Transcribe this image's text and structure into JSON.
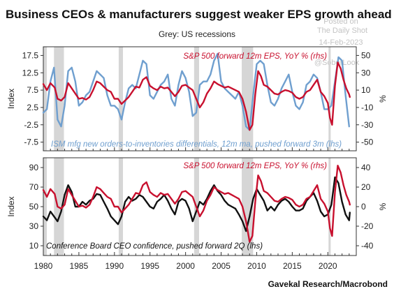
{
  "title": "Business CEOs & manufacturers suggest weaker EPS growth ahead",
  "subtitle": "Grey: US recessions",
  "watermark": {
    "line1": "Posted on",
    "line2": "The Daily Shot",
    "line3": "14-Feb-2023",
    "line4": "@SoberLook"
  },
  "source": "Gavekal Research/Macrobond",
  "colors": {
    "red": "#c8102e",
    "blue": "#6f9fcf",
    "black": "#111111",
    "recession": "#d6d6d6",
    "axis": "#333333"
  },
  "chart_data": [
    {
      "type": "line",
      "panel": "top",
      "xlim": [
        1980,
        2024
      ],
      "x_ticks": [
        "1980",
        "1985",
        "1990",
        "1995",
        "2000",
        "2005",
        "2010",
        "2015",
        "2020"
      ],
      "y_left_label": "Index",
      "y_left_lim": [
        -10,
        20
      ],
      "y_left_ticks": [
        "17.5",
        "12.5",
        "7.5",
        "2.5",
        "-2.5",
        "-7.5"
      ],
      "y_right_label": "%",
      "y_right_lim": [
        -60,
        60
      ],
      "y_right_ticks": [
        "50",
        "30",
        "10",
        "-10",
        "-30",
        "-50"
      ],
      "recessions": [
        [
          1980.0,
          1980.5
        ],
        [
          1981.5,
          1982.9
        ],
        [
          1990.6,
          1991.2
        ],
        [
          2001.2,
          2001.9
        ],
        [
          2007.9,
          2009.5
        ],
        [
          2020.1,
          2020.4
        ]
      ],
      "annotations": {
        "red": "S&P 500 forward 12m EPS, YoY % (rhs)",
        "blue": "ISM mfg new orders-to-inventories differentials, 12m ma, pushed forward 3m (lhs)"
      },
      "series": [
        {
          "name": "S&P 500 forward 12m EPS, YoY % (rhs)",
          "axis": "right",
          "color": "red",
          "x": [
            1980,
            1980.5,
            1981,
            1981.6,
            1982,
            1982.5,
            1983,
            1983.5,
            1984,
            1984.5,
            1985,
            1985.5,
            1986,
            1986.5,
            1987,
            1987.5,
            1988,
            1988.5,
            1989,
            1989.5,
            1990,
            1990.5,
            1991,
            1991.5,
            1992,
            1992.5,
            1993,
            1993.5,
            1994,
            1994.5,
            1995,
            1995.5,
            1996,
            1996.5,
            1997,
            1997.5,
            1998,
            1998.5,
            1999,
            1999.5,
            2000,
            2000.5,
            2001,
            2001.5,
            2002,
            2002.5,
            2003,
            2003.5,
            2004,
            2004.5,
            2005,
            2005.5,
            2006,
            2006.5,
            2007,
            2007.5,
            2008,
            2008.5,
            2009,
            2009.4,
            2009.8,
            2010.2,
            2010.6,
            2011,
            2011.5,
            2012,
            2012.5,
            2013,
            2013.5,
            2014,
            2014.5,
            2015,
            2015.5,
            2016,
            2016.5,
            2017,
            2017.5,
            2018,
            2018.5,
            2019,
            2019.5,
            2020,
            2020.3,
            2020.6,
            2021,
            2021.4,
            2021.8,
            2022.2,
            2022.6,
            2023,
            2023.1
          ],
          "values": [
            17,
            10,
            18,
            13,
            0,
            -2,
            2,
            18,
            12,
            6,
            0,
            1,
            -1,
            2,
            10,
            20,
            18,
            14,
            10,
            8,
            0,
            0,
            -6,
            -2,
            2,
            8,
            14,
            13,
            22,
            25,
            15,
            12,
            10,
            14,
            12,
            13,
            8,
            3,
            8,
            15,
            16,
            13,
            10,
            0,
            -10,
            -4,
            6,
            12,
            20,
            17,
            15,
            13,
            14,
            12,
            10,
            8,
            0,
            -15,
            -36,
            -30,
            5,
            32,
            26,
            16,
            14,
            10,
            6,
            5,
            8,
            10,
            9,
            7,
            2,
            0,
            2,
            8,
            10,
            16,
            22,
            8,
            3,
            -5,
            -22,
            -30,
            15,
            42,
            35,
            22,
            12,
            5,
            2
          ]
        },
        {
          "name": "ISM mfg new orders-to-inventories differentials, 12m ma, pushed forward 3m (lhs)",
          "axis": "left",
          "color": "blue",
          "x": [
            1980,
            1980.5,
            1981,
            1981.5,
            1982,
            1982.5,
            1983,
            1983.5,
            1984,
            1984.5,
            1985,
            1985.5,
            1986,
            1986.5,
            1987,
            1987.5,
            1988,
            1988.5,
            1989,
            1989.5,
            1990,
            1990.5,
            1991,
            1991.5,
            1992,
            1992.5,
            1993,
            1993.5,
            1994,
            1994.5,
            1995,
            1995.5,
            1996,
            1996.5,
            1997,
            1997.5,
            1998,
            1998.5,
            1999,
            1999.5,
            2000,
            2000.5,
            2001,
            2001.5,
            2002,
            2002.5,
            2003,
            2003.5,
            2004,
            2004.5,
            2005,
            2005.5,
            2006,
            2006.5,
            2007,
            2007.5,
            2008,
            2008.5,
            2009,
            2009.5,
            2010,
            2010.5,
            2011,
            2011.5,
            2012,
            2012.5,
            2013,
            2013.5,
            2014,
            2014.5,
            2015,
            2015.5,
            2016,
            2016.5,
            2017,
            2017.5,
            2018,
            2018.5,
            2019,
            2019.5,
            2020,
            2020.5,
            2021,
            2021.5,
            2022,
            2022.5,
            2023
          ],
          "values": [
            1,
            2,
            10,
            14,
            -1,
            -3,
            3,
            13,
            14,
            10,
            3,
            4,
            6,
            7,
            10,
            13,
            12,
            11,
            6,
            3,
            3,
            2,
            -1,
            4,
            8,
            9,
            8,
            12,
            16,
            15,
            6,
            5,
            7,
            9,
            10,
            12,
            5,
            3,
            9,
            13,
            11,
            7,
            0,
            1,
            9,
            10,
            10,
            12,
            16,
            18,
            10,
            8,
            7,
            6,
            5,
            7,
            3,
            -3,
            -4,
            6,
            15,
            16,
            15,
            9,
            4,
            3,
            5,
            8,
            10,
            12,
            7,
            3,
            2,
            4,
            9,
            10,
            12,
            11,
            7,
            2,
            2,
            3,
            10,
            17,
            16,
            6,
            -3
          ]
        }
      ]
    },
    {
      "type": "line",
      "panel": "bottom",
      "xlim": [
        1980,
        2024
      ],
      "x_ticks": [
        "1980",
        "1985",
        "1990",
        "1995",
        "2000",
        "2005",
        "2010",
        "2015",
        "2020"
      ],
      "y_left_label": "Index",
      "y_left_lim": [
        0,
        100
      ],
      "y_left_ticks": [
        "90",
        "70",
        "50",
        "30",
        "10"
      ],
      "y_right_label": "%",
      "y_right_lim": [
        -50,
        50
      ],
      "y_right_ticks": [
        "40",
        "20",
        "0",
        "-20",
        "-40"
      ],
      "recessions": [
        [
          1980.0,
          1980.5
        ],
        [
          1981.5,
          1982.9
        ],
        [
          1990.6,
          1991.2
        ],
        [
          2001.2,
          2001.9
        ],
        [
          2007.9,
          2009.5
        ],
        [
          2020.1,
          2020.4
        ]
      ],
      "annotations": {
        "red": "S&P 500 forward 12m EPS, YoY % (rhs)",
        "black": "Conference Board CEO confidence, pushed forward 2Q (lhs)"
      },
      "series": [
        {
          "name": "S&P 500 forward 12m EPS, YoY % (rhs)",
          "axis": "right",
          "color": "red",
          "x": [
            1980,
            1980.5,
            1981,
            1981.6,
            1982,
            1982.5,
            1983,
            1983.5,
            1984,
            1984.5,
            1985,
            1985.5,
            1986,
            1986.5,
            1987,
            1987.5,
            1988,
            1988.5,
            1989,
            1989.5,
            1990,
            1990.5,
            1991,
            1991.5,
            1992,
            1992.5,
            1993,
            1993.5,
            1994,
            1994.5,
            1995,
            1995.5,
            1996,
            1996.5,
            1997,
            1997.5,
            1998,
            1998.5,
            1999,
            1999.5,
            2000,
            2000.5,
            2001,
            2001.5,
            2002,
            2002.5,
            2003,
            2003.5,
            2004,
            2004.5,
            2005,
            2005.5,
            2006,
            2006.5,
            2007,
            2007.5,
            2008,
            2008.5,
            2009,
            2009.4,
            2009.8,
            2010.2,
            2010.6,
            2011,
            2011.5,
            2012,
            2012.5,
            2013,
            2013.5,
            2014,
            2014.5,
            2015,
            2015.5,
            2016,
            2016.5,
            2017,
            2017.5,
            2018,
            2018.5,
            2019,
            2019.5,
            2020,
            2020.3,
            2020.6,
            2021,
            2021.4,
            2021.8,
            2022.2,
            2022.6,
            2023,
            2023.1
          ],
          "values": [
            17,
            10,
            18,
            13,
            0,
            -2,
            2,
            18,
            12,
            6,
            0,
            1,
            -1,
            2,
            10,
            20,
            18,
            14,
            10,
            8,
            0,
            0,
            -6,
            -2,
            2,
            8,
            14,
            13,
            22,
            25,
            15,
            12,
            10,
            14,
            12,
            13,
            8,
            3,
            8,
            15,
            16,
            13,
            10,
            0,
            -10,
            -4,
            6,
            12,
            20,
            17,
            15,
            13,
            14,
            12,
            10,
            8,
            0,
            -15,
            -36,
            -30,
            5,
            32,
            26,
            16,
            14,
            10,
            6,
            5,
            8,
            10,
            9,
            7,
            2,
            0,
            2,
            8,
            10,
            16,
            22,
            8,
            3,
            -5,
            -22,
            -30,
            15,
            42,
            35,
            22,
            12,
            5,
            2
          ]
        },
        {
          "name": "Conference Board CEO confidence, pushed forward 2Q (lhs)",
          "axis": "left",
          "color": "black",
          "x": [
            1980,
            1980.5,
            1981,
            1981.5,
            1982,
            1982.5,
            1983,
            1983.5,
            1984,
            1984.5,
            1985,
            1985.5,
            1986,
            1986.5,
            1987,
            1987.5,
            1988,
            1988.5,
            1989,
            1989.5,
            1990,
            1990.5,
            1991,
            1991.5,
            1992,
            1992.5,
            1993,
            1993.5,
            1994,
            1994.5,
            1995,
            1995.5,
            1996,
            1996.5,
            1997,
            1997.5,
            1998,
            1998.5,
            1999,
            1999.5,
            2000,
            2000.5,
            2001,
            2001.5,
            2002,
            2002.5,
            2003,
            2003.5,
            2004,
            2004.5,
            2005,
            2005.5,
            2006,
            2006.5,
            2007,
            2007.5,
            2008,
            2008.5,
            2009,
            2009.5,
            2010,
            2010.5,
            2011,
            2011.5,
            2012,
            2012.5,
            2013,
            2013.5,
            2014,
            2014.5,
            2015,
            2015.5,
            2016,
            2016.5,
            2017,
            2017.5,
            2018,
            2018.5,
            2019,
            2019.5,
            2020,
            2020.5,
            2021,
            2021.5,
            2022,
            2022.5,
            2023,
            2023.1
          ],
          "values": [
            40,
            36,
            45,
            40,
            35,
            45,
            62,
            72,
            65,
            50,
            50,
            55,
            52,
            56,
            58,
            63,
            62,
            55,
            48,
            40,
            36,
            32,
            40,
            55,
            60,
            56,
            58,
            62,
            60,
            55,
            50,
            48,
            55,
            58,
            62,
            56,
            48,
            42,
            55,
            58,
            56,
            48,
            35,
            45,
            55,
            52,
            58,
            66,
            72,
            66,
            62,
            56,
            52,
            50,
            48,
            42,
            35,
            25,
            40,
            58,
            68,
            62,
            56,
            46,
            50,
            46,
            52,
            56,
            58,
            55,
            50,
            46,
            46,
            48,
            56,
            60,
            64,
            56,
            45,
            40,
            42,
            52,
            80,
            74,
            55,
            42,
            36,
            44
          ]
        }
      ]
    }
  ]
}
